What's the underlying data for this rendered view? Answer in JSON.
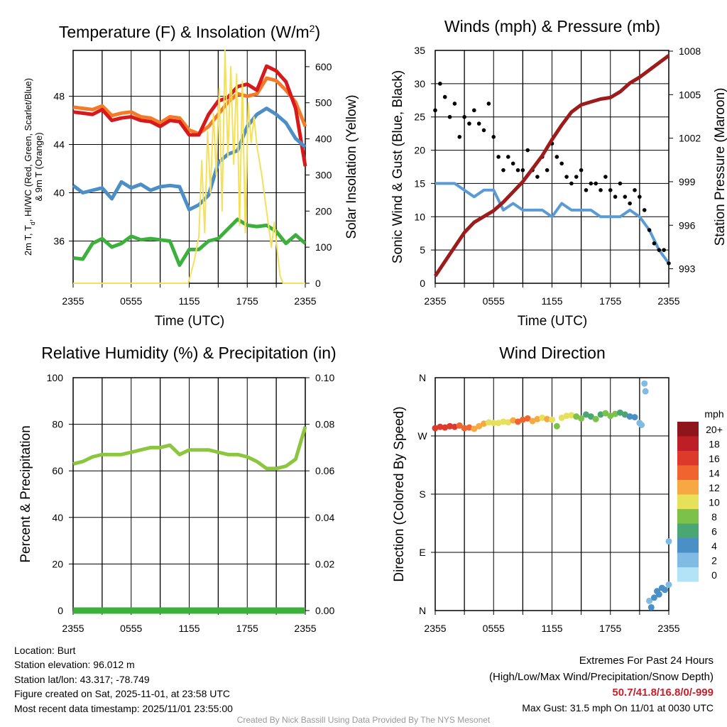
{
  "colors": {
    "temp": "#d7191c",
    "temp9m": "#f47a27",
    "hiwc": "#4c8fc8",
    "dew": "#3bb03b",
    "solar": "#f5e05a",
    "wind": "#5b9bd5",
    "gust": "#000000",
    "pressure": "#9e1b1b",
    "rh": "#8cc63f",
    "precip": "#3bb03b"
  },
  "chart_data": [
    {
      "type": "line",
      "title_pre": "Temperature (F) & Insolation (W/m",
      "title_sup": "2",
      "title_post": ")",
      "xlabel": "Time (UTC)",
      "ylabel_line1_pre": "2m T, T",
      "ylabel_line1_sub": "d",
      "ylabel_line1_post": ", HI/WC (Red, Green, Scarlet/Blue)",
      "ylabel_line2": "& 9m T (Orange)",
      "y2label": "Solar Insolation (Yellow)",
      "xticks": [
        "2355",
        "0555",
        "1155",
        "1755",
        "2355"
      ],
      "xlim_hours": [
        0,
        24
      ],
      "ylim": [
        32.5,
        51.8
      ],
      "yticks": [
        "36",
        "40",
        "44",
        "48"
      ],
      "y2lim": [
        0,
        645
      ],
      "y2ticks": [
        "0",
        "100",
        "200",
        "300",
        "400",
        "500",
        "600"
      ],
      "x": [
        0,
        1,
        2,
        3,
        4,
        5,
        6,
        7,
        8,
        9,
        10,
        11,
        12,
        13,
        14,
        15,
        16,
        17,
        18,
        19,
        20,
        21,
        22,
        23,
        24
      ],
      "series": [
        {
          "name": "9m T",
          "color_key": "temp9m",
          "values": [
            47.1,
            47.0,
            46.9,
            47.2,
            46.4,
            46.6,
            46.7,
            46.3,
            46.2,
            45.8,
            46.3,
            46.2,
            45.2,
            44.9,
            45.5,
            46.5,
            47.5,
            48.2,
            48.0,
            48.2,
            49.5,
            49.3,
            48.5,
            47.5,
            45.5
          ]
        },
        {
          "name": "2m T",
          "color_key": "temp",
          "values": [
            46.7,
            46.6,
            46.5,
            46.9,
            46.0,
            46.2,
            46.3,
            46.0,
            45.9,
            45.5,
            46.0,
            45.9,
            44.8,
            44.8,
            46.5,
            47.6,
            47.9,
            48.8,
            49.0,
            48.5,
            50.5,
            50.1,
            49.2,
            47.0,
            42.2
          ]
        },
        {
          "name": "HI/WC",
          "color_key": "hiwc",
          "values": [
            40.6,
            40.0,
            40.2,
            40.4,
            39.5,
            40.9,
            40.4,
            40.7,
            40.2,
            40.5,
            40.6,
            40.5,
            38.6,
            39.0,
            39.8,
            42.5,
            43.2,
            43.5,
            45.5,
            46.5,
            47.0,
            46.5,
            45.8,
            44.5,
            43.8
          ]
        },
        {
          "name": "Td",
          "color_key": "dew",
          "values": [
            34.6,
            34.5,
            35.8,
            36.2,
            35.5,
            35.8,
            36.4,
            36.1,
            36.2,
            36.1,
            36.0,
            34.0,
            35.3,
            35.3,
            36.0,
            36.2,
            37.0,
            37.8,
            37.3,
            37.2,
            37.3,
            36.8,
            35.8,
            36.5,
            35.8
          ]
        }
      ],
      "solar": {
        "x": [
          0,
          11.9,
          12.5,
          13,
          13.3,
          13.6,
          13.9,
          14.2,
          14.5,
          14.8,
          15.1,
          15.4,
          15.7,
          16.0,
          16.3,
          16.6,
          16.9,
          17.2,
          17.5,
          17.8,
          18.1,
          18.4,
          18.7,
          19.0,
          19.5,
          20.0,
          20.5,
          20.8,
          21.1,
          21.4,
          21.7,
          22.0,
          24
        ],
        "values": [
          0,
          0,
          60,
          130,
          340,
          140,
          420,
          250,
          470,
          300,
          540,
          200,
          645,
          350,
          600,
          330,
          580,
          160,
          560,
          140,
          500,
          390,
          460,
          380,
          300,
          200,
          100,
          170,
          90,
          20,
          0,
          0,
          0
        ]
      }
    },
    {
      "type": "line",
      "title": "Winds (mph) & Pressure (mb)",
      "xlabel": "Time (UTC)",
      "ylabel": "Sonic Wind & Gust (Blue, Black)",
      "y2label": "Station Pressure (Maroon)",
      "xticks": [
        "2355",
        "0555",
        "1155",
        "1755",
        "2355"
      ],
      "ylim": [
        0,
        35
      ],
      "yticks": [
        "0",
        "5",
        "10",
        "15",
        "20",
        "25",
        "30",
        "35"
      ],
      "y2lim": [
        992,
        1008.05
      ],
      "y2ticks": [
        "993",
        "996",
        "999",
        "1002",
        "1005",
        "1008"
      ],
      "x": [
        0,
        1,
        2,
        3,
        4,
        5,
        6,
        7,
        8,
        9,
        10,
        11,
        12,
        13,
        14,
        15,
        16,
        17,
        18,
        19,
        20,
        21,
        22,
        23,
        24
      ],
      "wind": [
        15,
        15,
        15,
        14,
        13,
        14,
        14,
        11,
        12,
        11,
        11,
        11,
        10,
        12,
        11,
        11,
        11,
        10,
        10,
        10,
        11,
        10,
        8,
        5,
        3
      ],
      "pressure": [
        992.5,
        993.5,
        994.5,
        995.5,
        996.2,
        996.6,
        997.0,
        997.6,
        998.3,
        999.0,
        999.9,
        1000.8,
        1001.9,
        1002.9,
        1003.8,
        1004.3,
        1004.5,
        1004.7,
        1004.8,
        1005.2,
        1005.8,
        1006.2,
        1006.7,
        1007.2,
        1007.7
      ],
      "gust_step_hours": 0.5,
      "gust": [
        26,
        30,
        28,
        25,
        27,
        22,
        25,
        24,
        26,
        24,
        23,
        27,
        22,
        19,
        17,
        19,
        18,
        17,
        17,
        20,
        17,
        16,
        19,
        17,
        21,
        19,
        18,
        16,
        15,
        16,
        17,
        14,
        15,
        15,
        14,
        16,
        14,
        13,
        15,
        13,
        12,
        14,
        13,
        11,
        8,
        6,
        5,
        5,
        3
      ]
    },
    {
      "type": "line",
      "title": "Relative Humidity (%) & Precipitation (in)",
      "ylabel": "Percent & Precipitation",
      "xticks": [
        "2355",
        "0555",
        "1155",
        "1755",
        "2355"
      ],
      "ylim": [
        0,
        100
      ],
      "yticks": [
        "0",
        "20",
        "40",
        "60",
        "80",
        "100"
      ],
      "y2lim": [
        0,
        0.1
      ],
      "y2ticks": [
        "0.00",
        "0.02",
        "0.04",
        "0.06",
        "0.08",
        "0.10"
      ],
      "x": [
        0,
        1,
        2,
        3,
        4,
        5,
        6,
        7,
        8,
        9,
        10,
        11,
        12,
        13,
        14,
        15,
        16,
        17,
        18,
        19,
        20,
        21,
        22,
        23,
        24
      ],
      "rh": [
        63,
        64,
        66,
        67,
        67,
        67,
        68,
        69,
        70,
        70,
        71,
        67,
        69,
        69,
        69,
        68,
        67,
        67,
        66,
        64,
        61,
        61,
        62,
        65,
        79
      ],
      "precip": [
        0,
        0,
        0,
        0,
        0,
        0,
        0,
        0,
        0,
        0,
        0,
        0,
        0,
        0,
        0,
        0,
        0,
        0,
        0,
        0,
        0,
        0,
        0,
        0,
        0
      ]
    },
    {
      "type": "scatter",
      "title": "Wind Direction",
      "ylabel": "Direction (Colored By Speed)",
      "xticks": [
        "2355",
        "0555",
        "1155",
        "1755",
        "2355"
      ],
      "yticks": [
        "N",
        "E",
        "S",
        "W",
        "N"
      ],
      "ylim_deg": [
        0,
        360
      ],
      "legend": {
        "title": "mph",
        "labels": [
          "20+",
          "18",
          "16",
          "14",
          "12",
          "10",
          "8",
          "6",
          "4",
          "2",
          "0"
        ],
        "colors": [
          "#8e1519",
          "#be1e26",
          "#de3a2c",
          "#f0652f",
          "#f7a843",
          "#e6e05a",
          "#7cc24a",
          "#4aa673",
          "#4a8fc6",
          "#7fbbe3",
          "#b3e3f7"
        ]
      },
      "points": [
        [
          0,
          282,
          16
        ],
        [
          0.5,
          284,
          17
        ],
        [
          1,
          283,
          17
        ],
        [
          1.5,
          285,
          16
        ],
        [
          2,
          284,
          16
        ],
        [
          2.5,
          286,
          15
        ],
        [
          3,
          282,
          15
        ],
        [
          3.5,
          283,
          14
        ],
        [
          4,
          281,
          13
        ],
        [
          4.5,
          285,
          12
        ],
        [
          5,
          289,
          12
        ],
        [
          5.5,
          291,
          11
        ],
        [
          6,
          290,
          10
        ],
        [
          6.5,
          290,
          10
        ],
        [
          7,
          292,
          11
        ],
        [
          7.5,
          291,
          10
        ],
        [
          8,
          294,
          12
        ],
        [
          8.5,
          292,
          14
        ],
        [
          9,
          295,
          14
        ],
        [
          9.5,
          297,
          14
        ],
        [
          10,
          293,
          13
        ],
        [
          10.5,
          296,
          12
        ],
        [
          11,
          298,
          11
        ],
        [
          11.5,
          296,
          12
        ],
        [
          12,
          295,
          10
        ],
        [
          12.5,
          285,
          8
        ],
        [
          13,
          298,
          11
        ],
        [
          13.5,
          301,
          10
        ],
        [
          14,
          302,
          10
        ],
        [
          14.5,
          300,
          9
        ],
        [
          15,
          297,
          9
        ],
        [
          15.5,
          303,
          7
        ],
        [
          16,
          300,
          6
        ],
        [
          16.5,
          296,
          8
        ],
        [
          17,
          303,
          7
        ],
        [
          17.5,
          305,
          8
        ],
        [
          18,
          301,
          8
        ],
        [
          18.5,
          304,
          8
        ],
        [
          19,
          306,
          7
        ],
        [
          19.5,
          303,
          6
        ],
        [
          20,
          300,
          5
        ],
        [
          20.5,
          299,
          4
        ],
        [
          21,
          290,
          3
        ],
        [
          21.2,
          287,
          2
        ],
        [
          21.5,
          351,
          2
        ],
        [
          21.6,
          339,
          2
        ],
        [
          22,
          15,
          3
        ],
        [
          22.2,
          5,
          4
        ],
        [
          22.5,
          20,
          4
        ],
        [
          22.8,
          30,
          5
        ],
        [
          23,
          25,
          4
        ],
        [
          23.3,
          35,
          4
        ],
        [
          23.6,
          32,
          4
        ],
        [
          24,
          107,
          2
        ],
        [
          24,
          40,
          2
        ]
      ]
    }
  ],
  "footer": {
    "location": "Location: Burt",
    "elevation": "Station elevation: 96.012 m",
    "latlon": "Station lat/lon: 43.317; -78.749",
    "created": "Figure created on Sat, 2025-11-01, at 23:58 UTC",
    "recent": "Most recent data timestamp: 2025/11/01 23:55:00",
    "extremes_title": "Extremes For Past 24 Hours",
    "extremes_legend": "(High/Low/Max Wind/Precipitation/Snow Depth)",
    "extremes_values": "50.7/41.8/16.8/0/-999",
    "max_gust": "Max Gust: 31.5 mph On 11/01 at 0030 UTC",
    "credit": "Created By Nick Bassill Using Data Provided By The NYS Mesonet"
  }
}
